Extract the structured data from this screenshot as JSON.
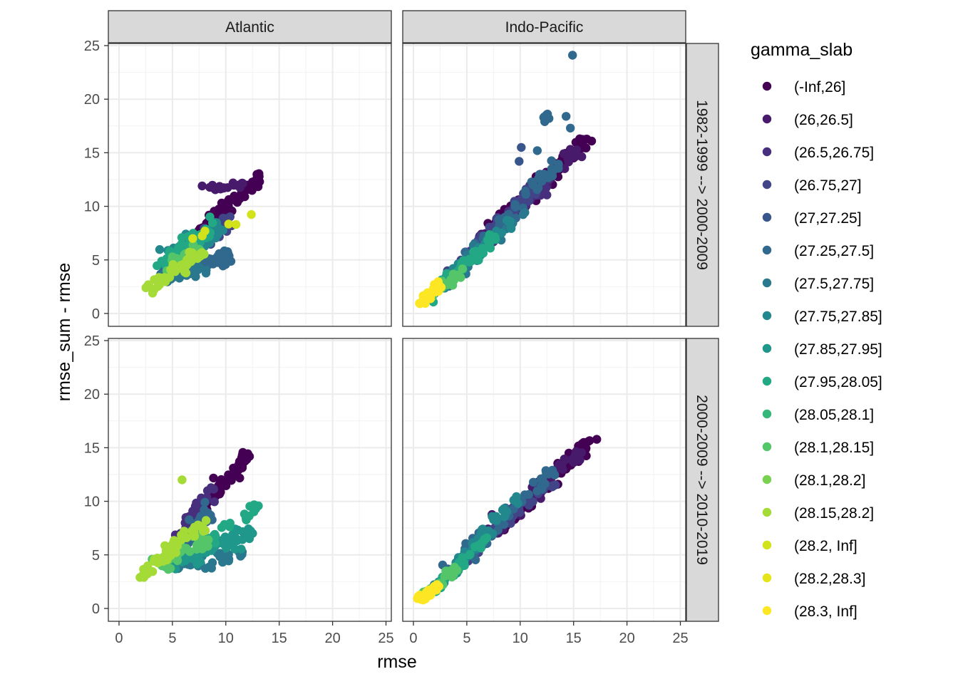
{
  "chart_data": {
    "type": "scatter",
    "xlabel": "rmse",
    "ylabel": "rmse_sum - rmse",
    "xlim": [
      -1,
      25.5
    ],
    "ylim": [
      -1.2,
      25.2
    ],
    "x_ticks": [
      0,
      5,
      10,
      15,
      20,
      25
    ],
    "y_ticks": [
      0,
      5,
      10,
      15,
      20,
      25
    ],
    "grid": true,
    "facet_columns": [
      "Atlantic",
      "Indo-Pacific"
    ],
    "facet_rows": [
      "1982-1999 --> 2000-2009",
      "2000-2009 --> 2010-2019"
    ],
    "legend": {
      "title": "gamma_slab",
      "position": "right",
      "entries": [
        {
          "label": "(-Inf,26]",
          "color": "#440154"
        },
        {
          "label": "(26,26.5]",
          "color": "#481A6C"
        },
        {
          "label": "(26.5,26.75]",
          "color": "#472F7D"
        },
        {
          "label": "(26.75,27]",
          "color": "#414487"
        },
        {
          "label": "(27,27.25]",
          "color": "#39568C"
        },
        {
          "label": "(27.25,27.5]",
          "color": "#31688E"
        },
        {
          "label": "(27.5,27.75]",
          "color": "#2A788E"
        },
        {
          "label": "(27.75,27.85]",
          "color": "#23888E"
        },
        {
          "label": "(27.85,27.95]",
          "color": "#1F988B"
        },
        {
          "label": "(27.95,28.05]",
          "color": "#22A884"
        },
        {
          "label": "(28.05,28.1]",
          "color": "#35B779"
        },
        {
          "label": "(28.1,28.15]",
          "color": "#54C568"
        },
        {
          "label": "(28.1,28.2]",
          "color": "#7AD151"
        },
        {
          "label": "(28.15,28.2]",
          "color": "#A5DB36"
        },
        {
          "label": "(28.2, Inf]",
          "color": "#D2E21B"
        },
        {
          "label": "(28.2,28.3]",
          "color": "#E4E419"
        },
        {
          "label": "(28.3, Inf]",
          "color": "#FDE725"
        }
      ]
    },
    "panels": [
      {
        "row": 0,
        "col": 0,
        "clusters": [
          {
            "class": 0,
            "x0": 7.2,
            "y0": 7.5,
            "x1": 13.2,
            "y1": 12.8,
            "n": 70,
            "spread": 0.55
          },
          {
            "class": 1,
            "x0": 7.5,
            "y0": 11.7,
            "x1": 12.2,
            "y1": 11.9,
            "n": 18,
            "spread": 0.3
          },
          {
            "class": 3,
            "x0": 6.0,
            "y0": 5.6,
            "x1": 10.5,
            "y1": 8.6,
            "n": 40,
            "spread": 0.7
          },
          {
            "class": 5,
            "x0": 4.2,
            "y0": 3.6,
            "x1": 10.5,
            "y1": 5.3,
            "n": 60,
            "spread": 0.6
          },
          {
            "class": 6,
            "x0": 4.0,
            "y0": 3.3,
            "x1": 8.0,
            "y1": 4.2,
            "n": 40,
            "spread": 0.5
          },
          {
            "class": 7,
            "x0": 4.5,
            "y0": 5.5,
            "x1": 9.5,
            "y1": 7.7,
            "n": 40,
            "spread": 0.7
          },
          {
            "class": 9,
            "x0": 4.0,
            "y0": 4.5,
            "x1": 8.5,
            "y1": 8.0,
            "n": 50,
            "spread": 0.8
          },
          {
            "class": 11,
            "x0": 4.2,
            "y0": 4.2,
            "x1": 7.5,
            "y1": 6.0,
            "n": 25,
            "spread": 0.5
          },
          {
            "class": 13,
            "x0": 2.6,
            "y0": 2.2,
            "x1": 8.0,
            "y1": 5.8,
            "n": 45,
            "spread": 0.5
          },
          {
            "class": 14,
            "x0": 5.5,
            "y0": 6.5,
            "x1": 12.0,
            "y1": 9.2,
            "n": 6,
            "spread": 0.4
          }
        ]
      },
      {
        "row": 0,
        "col": 1,
        "clusters": [
          {
            "class": 0,
            "x0": 7.5,
            "y0": 8.0,
            "x1": 16.2,
            "y1": 16.3,
            "n": 90,
            "spread": 0.55
          },
          {
            "class": 1,
            "x0": 6.0,
            "y0": 6.5,
            "x1": 15.5,
            "y1": 15.5,
            "n": 70,
            "spread": 0.5
          },
          {
            "class": 2,
            "x0": 4.5,
            "y0": 4.5,
            "x1": 12.5,
            "y1": 12.5,
            "n": 70,
            "spread": 0.55
          },
          {
            "class": 3,
            "x0": 3.5,
            "y0": 3.5,
            "x1": 11.0,
            "y1": 11.5,
            "n": 60,
            "spread": 0.5
          },
          {
            "class": 5,
            "x0": 3.0,
            "y0": 3.0,
            "x1": 13.5,
            "y1": 14.0,
            "n": 60,
            "spread": 0.55
          },
          {
            "class": 6,
            "x0": 2.0,
            "y0": 2.0,
            "x1": 10.5,
            "y1": 9.5,
            "n": 40,
            "spread": 0.5
          },
          {
            "class": 7,
            "x0": 2.0,
            "y0": 2.0,
            "x1": 9.5,
            "y1": 9.0,
            "n": 40,
            "spread": 0.5
          },
          {
            "class": 9,
            "x0": 2.0,
            "y0": 2.0,
            "x1": 8.0,
            "y1": 7.5,
            "n": 40,
            "spread": 0.45
          },
          {
            "class": 11,
            "x0": 1.5,
            "y0": 1.5,
            "x1": 4.5,
            "y1": 4.0,
            "n": 20,
            "spread": 0.35
          },
          {
            "class": 16,
            "x0": 0.7,
            "y0": 0.9,
            "x1": 2.5,
            "y1": 2.8,
            "n": 35,
            "spread": 0.3
          },
          {
            "class": 5,
            "x0": 12.2,
            "y0": 18.3,
            "x1": 12.6,
            "y1": 18.6,
            "n": 6,
            "spread": 0.1
          }
        ],
        "points": [
          {
            "class": 5,
            "x": 14.9,
            "y": 24.1
          },
          {
            "class": 5,
            "x": 14.3,
            "y": 18.4
          },
          {
            "class": 5,
            "x": 14.7,
            "y": 17.3
          },
          {
            "class": 5,
            "x": 12.3,
            "y": 17.9
          },
          {
            "class": 5,
            "x": 12.7,
            "y": 18.2
          },
          {
            "class": 4,
            "x": 10.1,
            "y": 15.5
          },
          {
            "class": 4,
            "x": 9.9,
            "y": 14.2
          },
          {
            "class": 5,
            "x": 11.6,
            "y": 15.2
          }
        ]
      },
      {
        "row": 1,
        "col": 0,
        "clusters": [
          {
            "class": 0,
            "x0": 6.5,
            "y0": 7.5,
            "x1": 12.0,
            "y1": 14.3,
            "n": 60,
            "spread": 0.6
          },
          {
            "class": 2,
            "x0": 5.5,
            "y0": 6.0,
            "x1": 8.5,
            "y1": 11.0,
            "n": 40,
            "spread": 0.6
          },
          {
            "class": 5,
            "x0": 5.0,
            "y0": 5.0,
            "x1": 8.5,
            "y1": 9.0,
            "n": 40,
            "spread": 0.7
          },
          {
            "class": 6,
            "x0": 4.5,
            "y0": 3.8,
            "x1": 11.5,
            "y1": 5.0,
            "n": 50,
            "spread": 0.5
          },
          {
            "class": 8,
            "x0": 4.5,
            "y0": 4.0,
            "x1": 12.5,
            "y1": 7.2,
            "n": 80,
            "spread": 0.7
          },
          {
            "class": 9,
            "x0": 7.5,
            "y0": 6.0,
            "x1": 13.2,
            "y1": 9.6,
            "n": 25,
            "spread": 0.5
          },
          {
            "class": 11,
            "x0": 4.0,
            "y0": 4.0,
            "x1": 8.0,
            "y1": 6.5,
            "n": 40,
            "spread": 0.6
          },
          {
            "class": 13,
            "x0": 2.0,
            "y0": 2.8,
            "x1": 8.0,
            "y1": 8.0,
            "n": 55,
            "spread": 0.5
          }
        ],
        "points": [
          {
            "class": 13,
            "x": 5.9,
            "y": 12.0
          }
        ]
      },
      {
        "row": 1,
        "col": 1,
        "clusters": [
          {
            "class": 0,
            "x0": 8.0,
            "y0": 7.5,
            "x1": 17.0,
            "y1": 16.1,
            "n": 90,
            "spread": 0.5
          },
          {
            "class": 1,
            "x0": 6.0,
            "y0": 6.0,
            "x1": 16.0,
            "y1": 15.0,
            "n": 70,
            "spread": 0.5
          },
          {
            "class": 3,
            "x0": 4.0,
            "y0": 4.0,
            "x1": 13.0,
            "y1": 12.0,
            "n": 60,
            "spread": 0.5
          },
          {
            "class": 5,
            "x0": 3.0,
            "y0": 3.0,
            "x1": 13.0,
            "y1": 13.0,
            "n": 60,
            "spread": 0.55
          },
          {
            "class": 7,
            "x0": 2.0,
            "y0": 2.0,
            "x1": 10.0,
            "y1": 10.5,
            "n": 50,
            "spread": 0.5
          },
          {
            "class": 9,
            "x0": 1.5,
            "y0": 1.5,
            "x1": 7.0,
            "y1": 6.5,
            "n": 40,
            "spread": 0.4
          },
          {
            "class": 11,
            "x0": 1.2,
            "y0": 1.2,
            "x1": 4.0,
            "y1": 4.0,
            "n": 20,
            "spread": 0.35
          },
          {
            "class": 16,
            "x0": 0.6,
            "y0": 0.7,
            "x1": 2.3,
            "y1": 2.2,
            "n": 35,
            "spread": 0.3
          }
        ]
      }
    ]
  }
}
